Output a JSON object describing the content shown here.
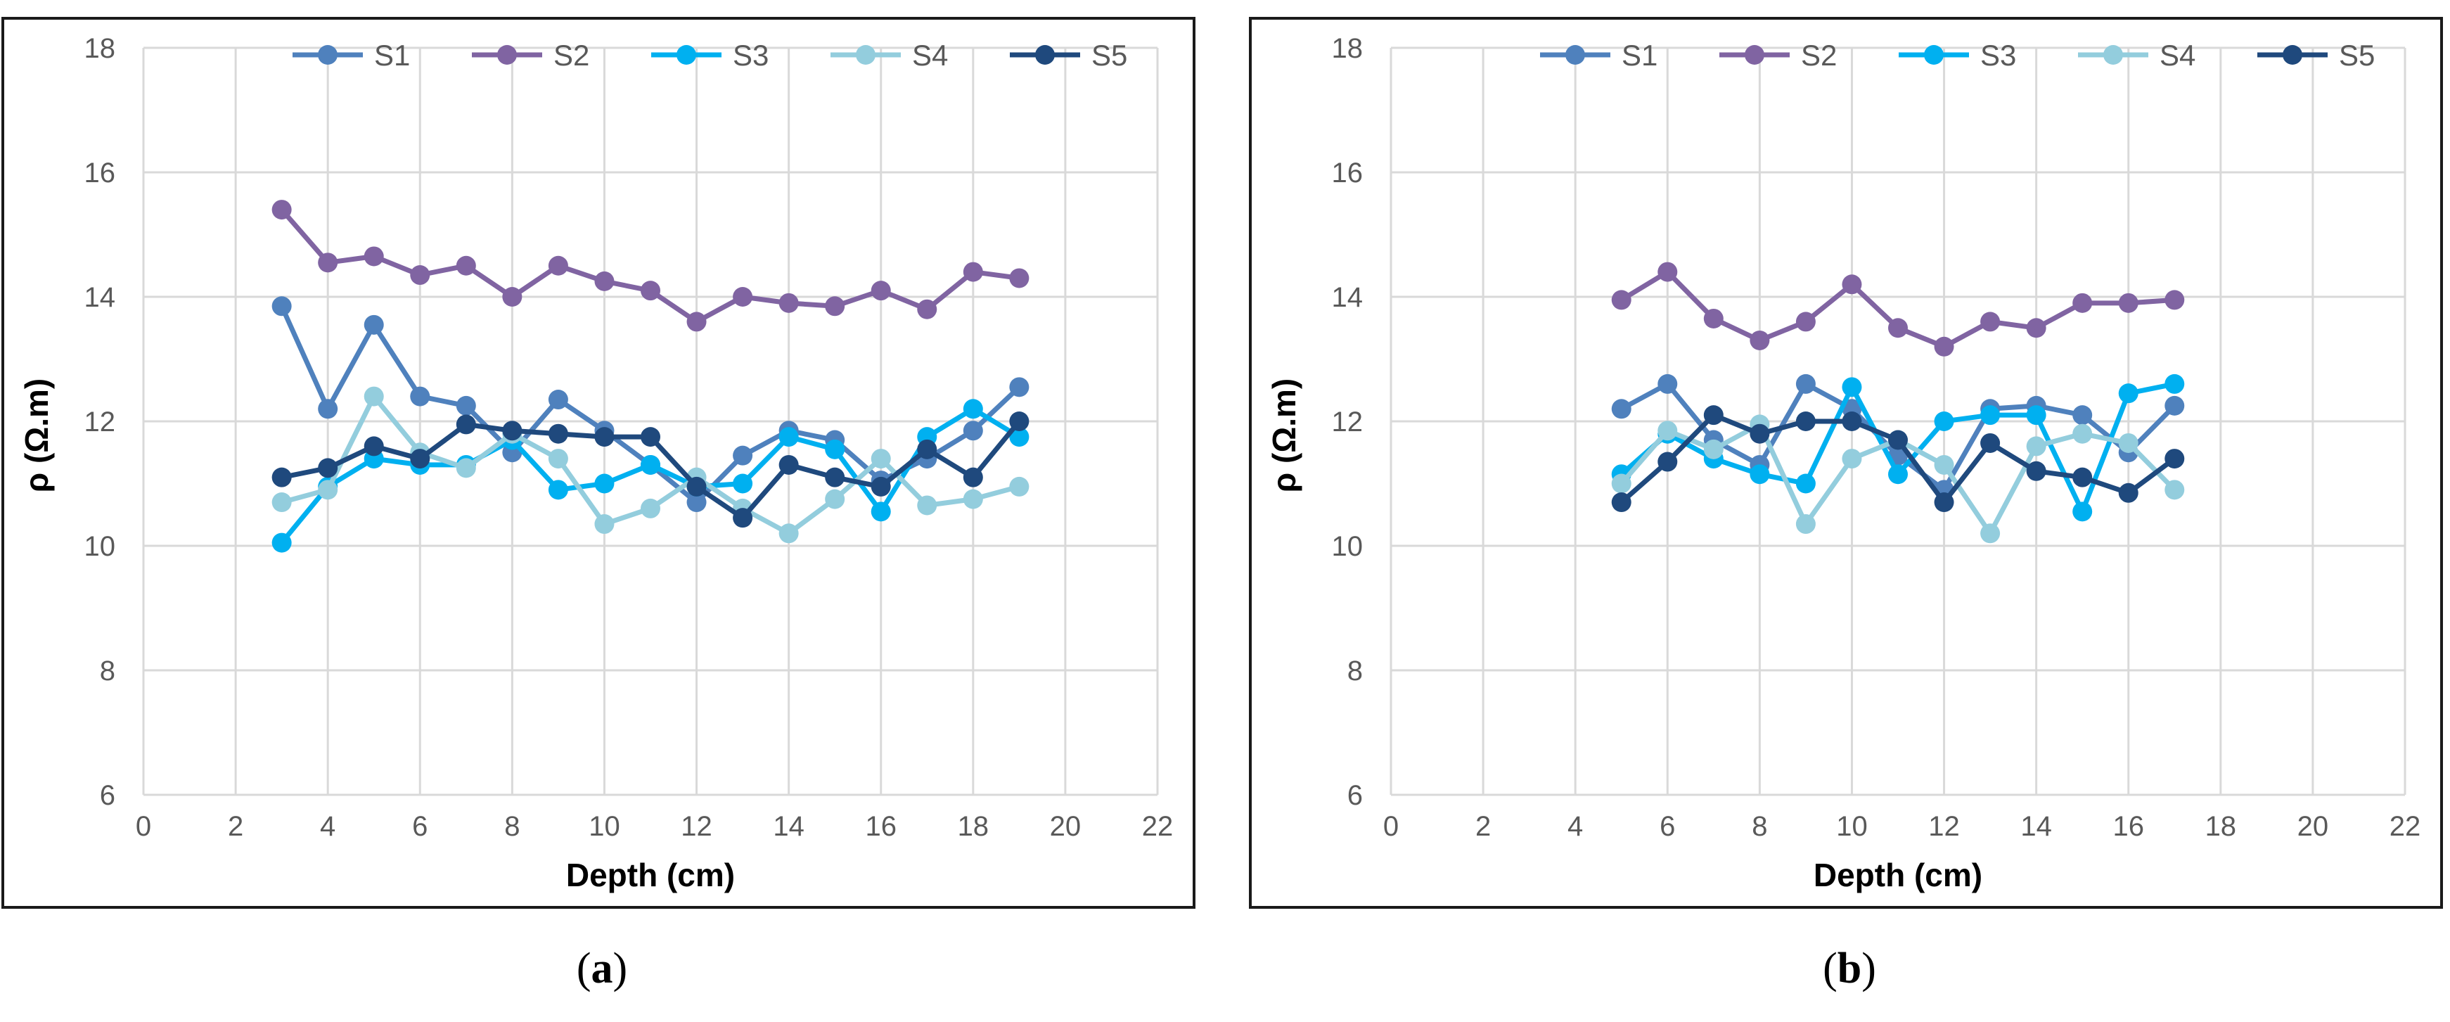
{
  "chart_data": [
    {
      "type": "line",
      "panel": "a",
      "title": "",
      "xlabel": "Depth (cm)",
      "ylabel": "ρ (Ω.m)",
      "xlim": [
        0,
        22
      ],
      "ylim": [
        6,
        18
      ],
      "xticks": [
        "0",
        "2",
        "4",
        "6",
        "8",
        "10",
        "12",
        "14",
        "16",
        "18",
        "20",
        "22"
      ],
      "yticks": [
        "6",
        "8",
        "10",
        "12",
        "14",
        "16",
        "18"
      ],
      "grid": true,
      "legend": "top",
      "x": [
        3,
        4,
        5,
        6,
        7,
        8,
        9,
        10,
        11,
        12,
        13,
        14,
        15,
        16,
        17,
        18,
        19
      ],
      "series": [
        {
          "name": "S1",
          "color": "#4f81bd",
          "values": [
            13.85,
            12.2,
            13.55,
            12.4,
            12.25,
            11.5,
            12.35,
            11.85,
            11.3,
            10.7,
            11.45,
            11.85,
            11.7,
            11.05,
            11.4,
            11.85,
            12.55
          ]
        },
        {
          "name": "S2",
          "color": "#8064a2",
          "values": [
            15.4,
            14.55,
            14.65,
            14.35,
            14.5,
            14.0,
            14.5,
            14.25,
            14.1,
            13.6,
            14.0,
            13.9,
            13.85,
            14.1,
            13.8,
            14.4,
            14.3
          ]
        },
        {
          "name": "S3",
          "color": "#00b0f0",
          "values": [
            10.05,
            10.95,
            11.4,
            11.3,
            11.3,
            11.7,
            10.9,
            11.0,
            11.3,
            10.95,
            11.0,
            11.75,
            11.55,
            10.55,
            11.75,
            12.2,
            11.75
          ]
        },
        {
          "name": "S4",
          "color": "#93cddd",
          "values": [
            10.7,
            10.9,
            12.4,
            11.5,
            11.25,
            11.8,
            11.4,
            10.35,
            10.6,
            11.1,
            10.6,
            10.2,
            10.75,
            11.4,
            10.65,
            10.75,
            10.95
          ]
        },
        {
          "name": "S5",
          "color": "#1f497d",
          "values": [
            11.1,
            11.25,
            11.6,
            11.4,
            11.95,
            11.85,
            11.8,
            11.75,
            11.75,
            10.95,
            10.45,
            11.3,
            11.1,
            10.95,
            11.55,
            11.1,
            12.0
          ]
        }
      ]
    },
    {
      "type": "line",
      "panel": "b",
      "title": "",
      "xlabel": "Depth (cm)",
      "ylabel": "ρ (Ω.m)",
      "xlim": [
        0,
        22
      ],
      "ylim": [
        6,
        18
      ],
      "xticks": [
        "0",
        "2",
        "4",
        "6",
        "8",
        "10",
        "12",
        "14",
        "16",
        "18",
        "20",
        "22"
      ],
      "yticks": [
        "6",
        "8",
        "10",
        "12",
        "14",
        "16",
        "18"
      ],
      "grid": true,
      "legend": "top",
      "x": [
        5,
        6,
        7,
        8,
        9,
        10,
        11,
        12,
        13,
        14,
        15,
        16,
        17
      ],
      "series": [
        {
          "name": "S1",
          "color": "#4f81bd",
          "values": [
            12.2,
            12.6,
            11.7,
            11.3,
            12.6,
            12.2,
            11.45,
            10.9,
            12.2,
            12.25,
            12.1,
            11.5,
            12.25
          ]
        },
        {
          "name": "S2",
          "color": "#8064a2",
          "values": [
            13.95,
            14.4,
            13.65,
            13.3,
            13.6,
            14.2,
            13.5,
            13.2,
            13.6,
            13.5,
            13.9,
            13.9,
            13.95
          ]
        },
        {
          "name": "S3",
          "color": "#00b0f0",
          "values": [
            11.15,
            11.8,
            11.4,
            11.15,
            11.0,
            12.55,
            11.15,
            12.0,
            12.1,
            12.1,
            10.55,
            12.45,
            12.6
          ]
        },
        {
          "name": "S4",
          "color": "#93cddd",
          "values": [
            11.0,
            11.85,
            11.55,
            11.95,
            10.35,
            11.4,
            11.7,
            11.3,
            10.2,
            11.6,
            11.8,
            11.65,
            10.9
          ]
        },
        {
          "name": "S5",
          "color": "#1f497d",
          "values": [
            10.7,
            11.35,
            12.1,
            11.8,
            12.0,
            12.0,
            11.7,
            10.7,
            11.65,
            11.2,
            11.1,
            10.85,
            11.4
          ]
        }
      ]
    }
  ],
  "captions": {
    "a_open": "(",
    "a_letter": "a",
    "a_close": ")",
    "b_open": "(",
    "b_letter": "b",
    "b_close": ")"
  },
  "colors": {
    "grid": "#d9d9d9",
    "axis_text": "#595959",
    "label_text": "#000000"
  }
}
